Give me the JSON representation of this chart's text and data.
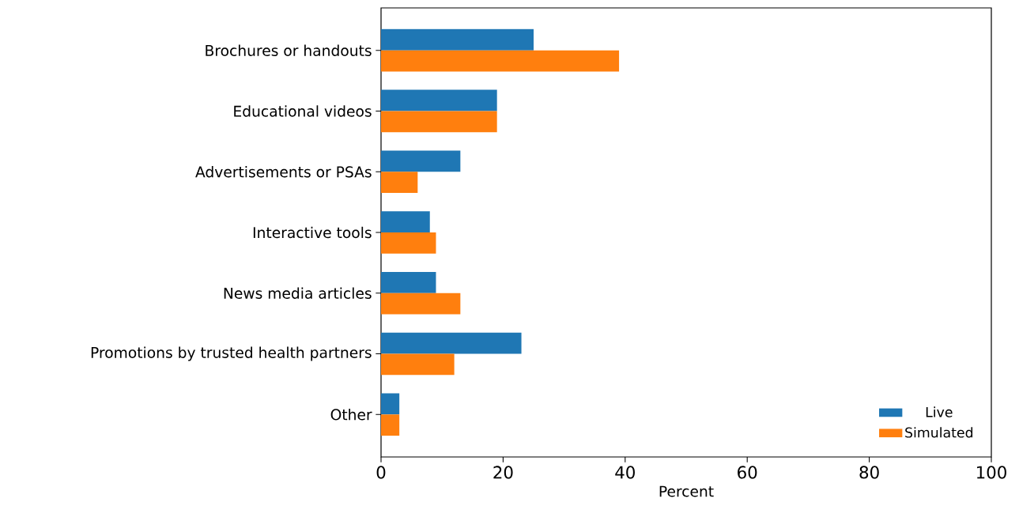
{
  "chart_data": {
    "type": "bar",
    "orientation": "horizontal",
    "xlabel": "Percent",
    "categories": [
      "Brochures or handouts",
      "Educational videos",
      "Advertisements or PSAs",
      "Interactive tools",
      "News media articles",
      "Promotions by trusted health partners",
      "Other"
    ],
    "series": [
      {
        "name": "Live",
        "color": "#1f77b4",
        "values": [
          25,
          19,
          13,
          8,
          9,
          23,
          3
        ]
      },
      {
        "name": "Simulated",
        "color": "#ff7f0e",
        "values": [
          39,
          19,
          6,
          9,
          13,
          12,
          3
        ]
      }
    ],
    "xlim": [
      0,
      100
    ],
    "xticks": [
      0,
      20,
      40,
      60,
      80,
      100
    ],
    "grid": false,
    "legend": "bottom right"
  }
}
